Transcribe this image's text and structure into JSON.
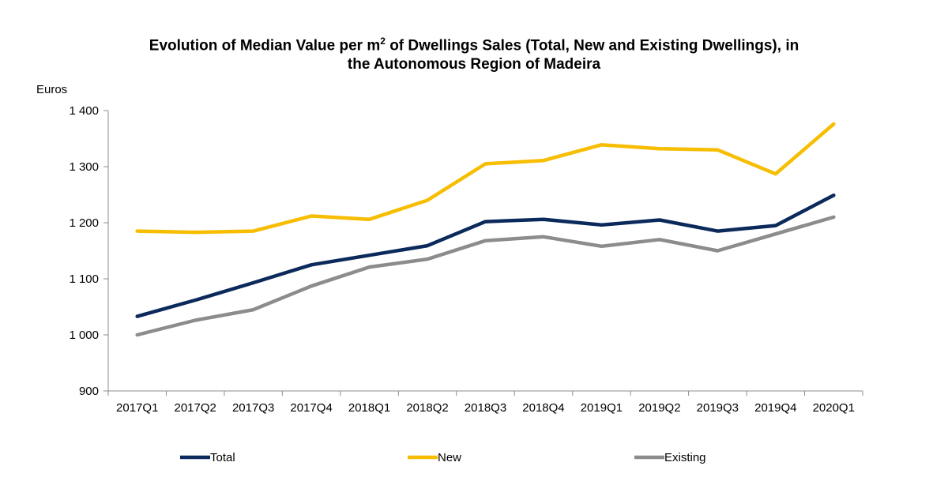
{
  "chart_data": {
    "type": "line",
    "title_main": "Evolution of Median Value per m",
    "title_sup": "2",
    "title_rest_line1": " of Dwellings Sales (Total, New and Existing Dwellings), in",
    "title_line2": "the Autonomous  Region of Madeira",
    "ylabel": "Euros",
    "xlabel": "",
    "ylim": [
      900,
      1400
    ],
    "yticks": [
      900,
      1000,
      1100,
      1200,
      1300,
      1400
    ],
    "ytick_labels": [
      "900",
      "1 000",
      "1 100",
      "1 200",
      "1 300",
      "1 400"
    ],
    "grid": false,
    "legend_position": "bottom",
    "categories": [
      "2017Q1",
      "2017Q2",
      "2017Q3",
      "2017Q4",
      "2018Q1",
      "2018Q2",
      "2018Q3",
      "2018Q4",
      "2019Q1",
      "2019Q2",
      "2019Q3",
      "2019Q4",
      "2020Q1"
    ],
    "series": [
      {
        "name": "Total",
        "color": "#0b2a5b",
        "values": [
          1033,
          1062,
          1093,
          1125,
          1142,
          1159,
          1202,
          1206,
          1196,
          1205,
          1185,
          1195,
          1249
        ]
      },
      {
        "name": "New",
        "color": "#f7bd00",
        "values": [
          1185,
          1183,
          1185,
          1212,
          1206,
          1240,
          1305,
          1311,
          1339,
          1332,
          1330,
          1287,
          1376
        ]
      },
      {
        "name": "Existing",
        "color": "#8c8c8c",
        "values": [
          1000,
          1026,
          1045,
          1087,
          1121,
          1135,
          1168,
          1175,
          1158,
          1170,
          1150,
          1180,
          1210
        ]
      }
    ]
  }
}
